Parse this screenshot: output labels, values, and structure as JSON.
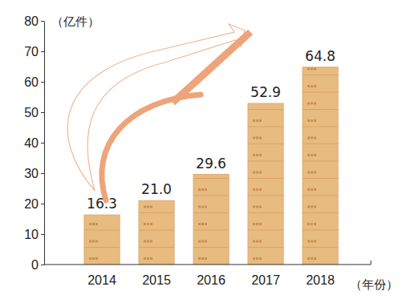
{
  "chart_data": {
    "type": "bar",
    "y_label": "（亿件）",
    "x_label": "（年份）",
    "categories": [
      "2014",
      "2015",
      "2016",
      "2017",
      "2018"
    ],
    "values": [
      16.3,
      21.0,
      29.6,
      52.9,
      64.8
    ],
    "value_labels": [
      "16.3",
      "21.0",
      "29.6",
      "52.9",
      "64.8"
    ],
    "color": "#e8bb80",
    "ylim": [
      0,
      80
    ],
    "yticks": [
      0,
      10,
      20,
      30,
      40,
      50,
      60,
      70,
      80
    ],
    "data_labels": true
  }
}
